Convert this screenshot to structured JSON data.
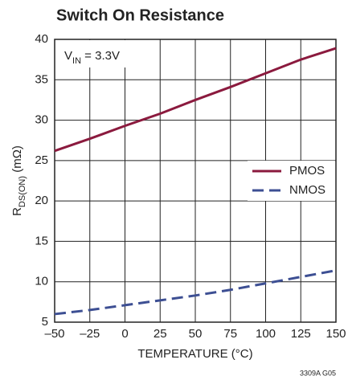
{
  "chart_data": {
    "type": "line",
    "title": "Switch On Resistance",
    "x_label": "TEMPERATURE (°C)",
    "y_label": {
      "main": "R",
      "sub": "DS(ON)",
      "rest": " (mΩ)"
    },
    "annotation": {
      "main": "V",
      "sub": "IN",
      "rest": " = 3.3V"
    },
    "footnote": "3309A G05",
    "x": [
      -50,
      -25,
      0,
      25,
      50,
      75,
      100,
      125,
      150
    ],
    "series": [
      {
        "name": "PMOS",
        "color": "#8b1a3e",
        "style": "solid",
        "values": [
          26.2,
          27.7,
          29.3,
          30.8,
          32.5,
          34.1,
          35.8,
          37.5,
          38.9
        ]
      },
      {
        "name": "NMOS",
        "color": "#3d4f93",
        "style": "dashed",
        "values": [
          6.0,
          6.5,
          7.1,
          7.7,
          8.3,
          9.0,
          9.8,
          10.6,
          11.4
        ]
      }
    ],
    "xlim": [
      -50,
      150
    ],
    "xticks": [
      {
        "value": -50,
        "label": "–50"
      },
      {
        "value": -25,
        "label": "–25"
      },
      0,
      25,
      50,
      75,
      100,
      125,
      150
    ],
    "ylim": [
      5,
      40
    ],
    "yticks": [
      5,
      10,
      15,
      20,
      25,
      30,
      35,
      40
    ],
    "grid": true,
    "legend": "right"
  }
}
